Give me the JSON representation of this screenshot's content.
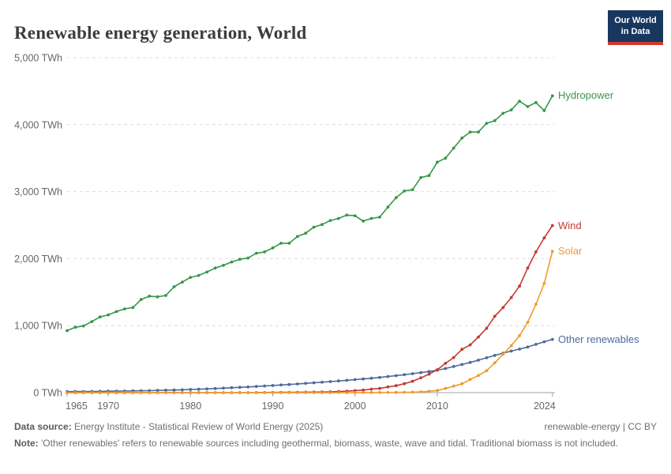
{
  "header": {
    "title": "Renewable energy generation, World",
    "logo_line1": "Our World",
    "logo_line2": "in Data"
  },
  "footer": {
    "source_label": "Data source:",
    "source_text": "Energy Institute - Statistical Review of World Energy (2025)",
    "rights": "renewable-energy | CC BY",
    "note_label": "Note:",
    "note_text": "'Other renewables' refers to renewable sources including geothermal, biomass, waste, wave and tidal. Traditional biomass is not included."
  },
  "colors": {
    "hydropower": "#38964A",
    "wind": "#C23A33",
    "solar": "#F09B2D",
    "other_renewables": "#4C6A9C",
    "axis_text": "#666666",
    "gridline": "#dcdcdc",
    "axis_line": "#a3a3a3"
  },
  "chart_data": {
    "type": "line",
    "title": "Renewable energy generation, World",
    "unit": "TWh",
    "grid": "dashed-horizontal",
    "legend_position": "right-end-labels",
    "xlim": [
      1965,
      2025
    ],
    "ylim": [
      0,
      5000
    ],
    "y_ticks": [
      0,
      1000,
      2000,
      3000,
      4000,
      5000
    ],
    "y_tick_labels": [
      "0 TWh",
      "1,000 TWh",
      "2,000 TWh",
      "3,000 TWh",
      "4,000 TWh",
      "5,000 TWh"
    ],
    "x_ticks": [
      1965,
      1970,
      1980,
      1990,
      2000,
      2010,
      2024
    ],
    "x": [
      1965,
      1966,
      1967,
      1968,
      1969,
      1970,
      1971,
      1972,
      1973,
      1974,
      1975,
      1976,
      1977,
      1978,
      1979,
      1980,
      1981,
      1982,
      1983,
      1984,
      1985,
      1986,
      1987,
      1988,
      1989,
      1990,
      1991,
      1992,
      1993,
      1994,
      1995,
      1996,
      1997,
      1998,
      1999,
      2000,
      2001,
      2002,
      2003,
      2004,
      2005,
      2006,
      2007,
      2008,
      2009,
      2010,
      2011,
      2012,
      2013,
      2014,
      2015,
      2016,
      2017,
      2018,
      2019,
      2020,
      2021,
      2022,
      2023,
      2024
    ],
    "series": [
      {
        "name": "Hydropower",
        "color": "#38964A",
        "values": [
          926,
          975,
          995,
          1060,
          1130,
          1160,
          1210,
          1250,
          1270,
          1390,
          1440,
          1430,
          1450,
          1580,
          1650,
          1720,
          1750,
          1800,
          1860,
          1900,
          1950,
          1990,
          2010,
          2080,
          2100,
          2160,
          2230,
          2230,
          2330,
          2380,
          2470,
          2510,
          2570,
          2600,
          2650,
          2640,
          2560,
          2600,
          2620,
          2770,
          2910,
          3010,
          3030,
          3210,
          3240,
          3440,
          3500,
          3650,
          3800,
          3890,
          3890,
          4020,
          4060,
          4170,
          4220,
          4350,
          4270,
          4330,
          4210,
          4430
        ]
      },
      {
        "name": "Wind",
        "color": "#C23A33",
        "values": [
          0,
          0,
          0,
          0,
          0,
          0,
          0,
          0,
          0,
          0,
          0,
          0,
          0,
          0,
          0,
          0,
          0,
          0,
          0,
          0.1,
          0.1,
          0.2,
          0.4,
          0.7,
          2,
          3.9,
          4.6,
          5.1,
          5.8,
          7,
          8.3,
          9.4,
          12,
          16,
          21,
          31,
          38,
          52,
          63,
          85,
          104,
          133,
          170,
          221,
          276,
          342,
          437,
          524,
          646,
          712,
          830,
          960,
          1140,
          1270,
          1420,
          1590,
          1860,
          2100,
          2310,
          2494
        ]
      },
      {
        "name": "Solar",
        "color": "#F09B2D",
        "values": [
          0,
          0,
          0,
          0,
          0,
          0,
          0,
          0,
          0,
          0,
          0,
          0,
          0,
          0,
          0,
          0,
          0,
          0,
          0,
          0,
          0,
          0,
          0,
          0,
          0,
          0,
          0,
          0,
          0,
          0,
          0,
          0,
          0,
          0,
          0,
          1,
          1.4,
          1.7,
          2.1,
          2.8,
          4,
          5.4,
          7.4,
          12,
          20,
          32,
          63,
          97,
          132,
          197,
          256,
          328,
          445,
          574,
          702,
          850,
          1050,
          1320,
          1630,
          2110
        ]
      },
      {
        "name": "Other renewables",
        "color": "#4C6A9C",
        "values": [
          15,
          16,
          17,
          18,
          19,
          21,
          22,
          24,
          26,
          28,
          30,
          33,
          36,
          39,
          43,
          47,
          51,
          56,
          61,
          67,
          73,
          79,
          85,
          92,
          99,
          106,
          114,
          122,
          130,
          138,
          147,
          156,
          165,
          174,
          184,
          194,
          204,
          215,
          227,
          240,
          254,
          268,
          283,
          298,
          315,
          335,
          360,
          390,
          420,
          450,
          485,
          520,
          555,
          590,
          620,
          650,
          680,
          720,
          760,
          795
        ]
      }
    ]
  }
}
